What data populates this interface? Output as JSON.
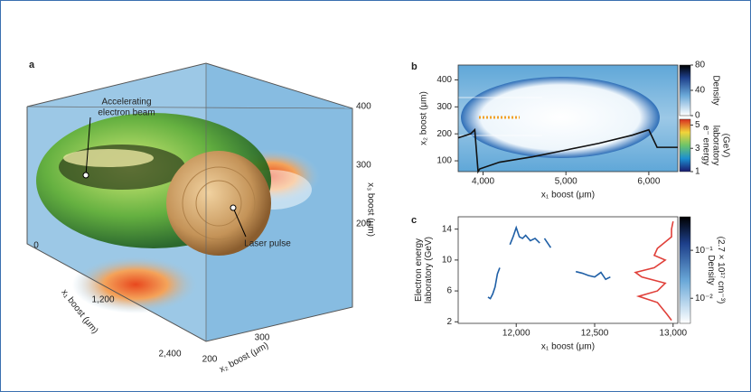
{
  "panel_a": {
    "label": "a",
    "beam_label": [
      "Accelerating",
      "electron beam"
    ],
    "laser_label": "Laser pulse",
    "x1_axis": {
      "label": "x₁ boost (μm)",
      "ticks": [
        0,
        {
          "value": 1200,
          "label": "1,200"
        },
        {
          "value": 2400,
          "label": "2,400"
        }
      ]
    },
    "x2_axis": {
      "label": "x₂ boost (μm)",
      "ticks": [
        200,
        300
      ]
    },
    "x3_axis": {
      "label": "x₃ boost (μm)",
      "ticks": [
        200,
        300,
        400
      ]
    }
  },
  "chart_data": [
    {
      "type": "line",
      "label": "b",
      "x_label": "x₁ boost (μm)",
      "y_label": [
        "x₂ boost (μm)"
      ],
      "xlim": [
        3700,
        6350
      ],
      "ylim": [
        60,
        455
      ],
      "xticks": [
        {
          "value": 4000,
          "label": "4,000"
        },
        {
          "value": 5000,
          "label": "5,000"
        },
        {
          "value": 6000,
          "label": "6,000"
        }
      ],
      "yticks": [
        100,
        200,
        300,
        400
      ],
      "series": [
        {
          "color": "#111111",
          "x": [
            3700,
            3850,
            3900,
            3940,
            3960,
            4200,
            4600,
            5000,
            5400,
            5800,
            5950,
            6000,
            6100,
            6350
          ],
          "values": [
            185,
            200,
            215,
            60,
            70,
            95,
            115,
            140,
            165,
            195,
            210,
            215,
            150,
            150
          ]
        }
      ],
      "colorbars": [
        {
          "label": [
            "Density"
          ],
          "lim": [
            0,
            80
          ],
          "ticks": [
            0,
            40,
            80
          ],
          "log": false
        },
        {
          "label": [
            "e⁻ energy",
            "laboratory",
            "(GeV)"
          ],
          "lim": [
            1,
            5.5
          ],
          "ticks": [
            1,
            3,
            5
          ],
          "log": false
        }
      ]
    },
    {
      "type": "line",
      "label": "c",
      "x_label": "x₁ boost (μm)",
      "y_label": [
        "Electron energy",
        "laboratory (GeV)"
      ],
      "xlim": [
        11630,
        13030
      ],
      "ylim": [
        1.8,
        15.6
      ],
      "xticks": [
        {
          "value": 12000,
          "label": "12,000"
        },
        {
          "value": 12500,
          "label": "12,500"
        },
        {
          "value": 13000,
          "label": "13,000"
        }
      ],
      "yticks": [
        2,
        6,
        10,
        14
      ],
      "series": [
        {
          "color": "#1f5fa6",
          "x": [
            11820,
            11835,
            11850,
            11865,
            11880,
            11895,
            null,
            11960,
            11980,
            12000,
            12020,
            12040,
            12060,
            12090,
            12120,
            12150,
            null,
            12180,
            12200,
            12220,
            null,
            12380,
            12420,
            12460,
            12500,
            12540,
            12570,
            12600
          ],
          "values": [
            5.2,
            5,
            5.6,
            6.5,
            8.2,
            9,
            null,
            12,
            13,
            14.2,
            13,
            12.8,
            13.2,
            12.5,
            12.8,
            12.2,
            null,
            12.8,
            12.2,
            11.6,
            null,
            8.5,
            8.3,
            8,
            7.8,
            8.4,
            7.5,
            7.8
          ]
        },
        {
          "color": "#e0403a",
          "x": [
            12990,
            12960,
            12900,
            12780,
            12900,
            12950,
            12800,
            12760,
            12880,
            12950,
            12880,
            12900,
            12990,
            12990,
            13000
          ],
          "values": [
            2.2,
            3,
            4.5,
            5.3,
            6,
            7,
            7.8,
            8.4,
            9,
            10,
            10.6,
            11.5,
            13,
            14,
            15
          ]
        }
      ],
      "colorbars": [
        {
          "label": [
            "Density",
            "(2.7 × 10¹⁷ cm⁻³)"
          ],
          "lim": [
            0.003,
            0.5
          ],
          "ticks": [
            {
              "value": 0.1,
              "label": "10⁻¹"
            },
            {
              "value": 0.01,
              "label": "10⁻²"
            }
          ],
          "log": true
        }
      ]
    }
  ]
}
